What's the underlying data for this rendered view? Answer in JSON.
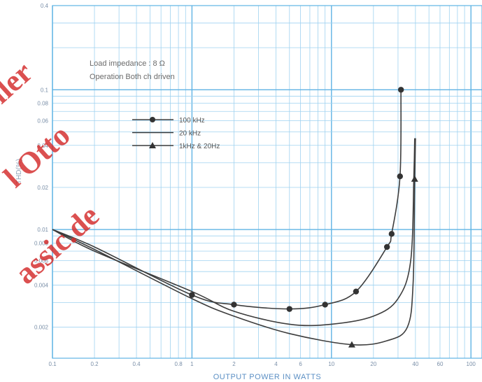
{
  "chart_data": {
    "type": "line",
    "xlabel": "OUTPUT POWER IN WATTS",
    "ylabel": "THD(%)",
    "x_scale": "log",
    "y_scale": "log",
    "xlim": [
      0.1,
      120
    ],
    "ylim": [
      0.0012,
      0.4
    ],
    "x_ticks": [
      "0.1",
      "0.2",
      "0.4",
      "0.8",
      "1",
      "2",
      "4",
      "6",
      "10",
      "20",
      "40",
      "60",
      "100"
    ],
    "y_ticks": [
      "0.4",
      "0.1",
      "0.08",
      "0.06",
      "0.04",
      "0.02",
      "0.01",
      "0.008",
      "0.006",
      "0.004",
      "0.002"
    ],
    "grid": true,
    "annotations": [
      "Load impedance : 8 Ω",
      "Operation  Both ch driven"
    ],
    "legend_position": "upper-left",
    "series": [
      {
        "name": "100 kHz",
        "marker": "circle",
        "x": [
          0.1,
          0.2,
          1,
          2,
          5,
          9,
          15,
          25,
          27,
          31,
          31.5
        ],
        "y": [
          0.01,
          0.0075,
          0.0034,
          0.0029,
          0.0027,
          0.0029,
          0.0036,
          0.0075,
          0.0093,
          0.024,
          0.1
        ]
      },
      {
        "name": "20 kHz",
        "marker": "none",
        "x": [
          0.1,
          0.2,
          1,
          2,
          5,
          10,
          20,
          30,
          37,
          39,
          39.5
        ],
        "y": [
          0.01,
          0.007,
          0.0036,
          0.0026,
          0.0021,
          0.0021,
          0.0024,
          0.0032,
          0.006,
          0.025,
          0.045
        ]
      },
      {
        "name": "1kHz & 20Hz",
        "marker": "triangle",
        "x": [
          0.1,
          0.2,
          1,
          2,
          5,
          14,
          25,
          35,
          38.5,
          39.5,
          40
        ],
        "y": [
          0.01,
          0.0072,
          0.0032,
          0.0024,
          0.0018,
          0.0015,
          0.0016,
          0.002,
          0.0042,
          0.023,
          0.045
        ]
      }
    ]
  },
  "watermark": [
    "ller",
    "l Otto",
    "assic.de"
  ],
  "colors": {
    "grid": "#5fb3e4",
    "grid_minor": "#9fd2f0",
    "curve": "#3d3d3d",
    "watermark": "#d42a2a"
  }
}
